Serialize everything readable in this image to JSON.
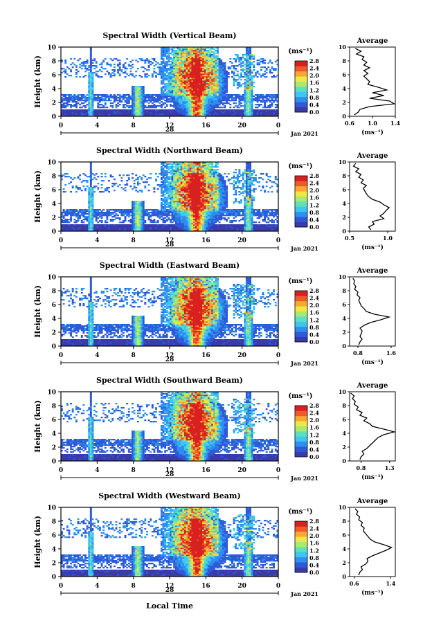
{
  "chart_data": {
    "type": "heatmap",
    "date_label": "Jan 2021",
    "day_label": "28",
    "x_ticks": [
      "0",
      "4",
      "8",
      "12",
      "16",
      "20",
      "0"
    ],
    "xlim_hours": [
      0,
      24
    ],
    "x_axis_label": "Local Time",
    "ylabel": "Height (km)",
    "y_ticks": [
      "0",
      "2",
      "4",
      "6",
      "8",
      "10"
    ],
    "ylim_km": [
      0,
      10
    ],
    "colorbar": {
      "unit": "(ms⁻¹)",
      "range": [
        0,
        2.8
      ],
      "ticks": [
        "0.0",
        "0.4",
        "0.8",
        "1.2",
        "1.6",
        "2.0",
        "2.4",
        "2.8"
      ],
      "colors": [
        "#3a3aa8",
        "#2e5ad8",
        "#2f8ef0",
        "#3cc6f0",
        "#5ee0c0",
        "#a8ea70",
        "#f0e840",
        "#f8a830",
        "#f05a28",
        "#d82020"
      ]
    },
    "average_panel": {
      "title": "Average",
      "xlabel": "(ms⁻¹)"
    },
    "features": {
      "convective_columns_hours": [
        3.3,
        8.5,
        13.5,
        15.0,
        16.5,
        20.7
      ],
      "surface_layer_top_km": 1.0,
      "cloud_layer_km": [
        2.3,
        3.2
      ]
    },
    "panels": [
      {
        "title": "Spectral Width (Vertical Beam)",
        "avg_ticks": [
          "0.6",
          "1.0",
          "1.4"
        ],
        "avg_xlim": [
          0.6,
          1.4
        ],
        "avg_profile": {
          "height_km": [
            0.2,
            0.6,
            1.0,
            1.4,
            1.8,
            2.2,
            2.6,
            3.0,
            3.4,
            3.8,
            4.2,
            4.6,
            5.0,
            5.4,
            5.8,
            6.2,
            6.6,
            7.0,
            7.4,
            7.8,
            8.2,
            8.6,
            9.0,
            9.4,
            9.8
          ],
          "value": [
            0.68,
            0.75,
            0.78,
            0.95,
            1.38,
            1.3,
            0.95,
            1.2,
            1.0,
            1.25,
            1.1,
            0.92,
            0.95,
            0.9,
            0.85,
            0.92,
            0.85,
            0.95,
            0.85,
            0.9,
            0.82,
            0.85,
            0.72,
            0.8,
            0.7
          ]
        }
      },
      {
        "title": "Spectral Width (Northward Beam)",
        "avg_ticks": [
          "0.5",
          "1.0"
        ],
        "avg_xlim": [
          0.5,
          1.1
        ],
        "avg_profile": {
          "height_km": [
            0.2,
            0.6,
            1.0,
            1.4,
            1.8,
            2.2,
            2.6,
            3.0,
            3.4,
            3.8,
            4.2,
            4.6,
            5.0,
            5.4,
            5.8,
            6.2,
            6.6,
            7.0,
            7.4,
            7.8,
            8.2,
            8.6,
            9.0,
            9.4,
            9.8
          ],
          "value": [
            0.78,
            0.75,
            0.82,
            0.8,
            0.95,
            0.9,
            0.95,
            0.98,
            1.02,
            0.95,
            0.9,
            0.8,
            0.75,
            0.72,
            0.7,
            0.68,
            0.72,
            0.65,
            0.68,
            0.62,
            0.65,
            0.58,
            0.62,
            0.55,
            0.58
          ]
        }
      },
      {
        "title": "Spectral Width (Eastward Beam)",
        "avg_ticks": [
          "0.8",
          "1.6"
        ],
        "avg_xlim": [
          0.6,
          1.7
        ],
        "avg_profile": {
          "height_km": [
            0.2,
            0.6,
            1.0,
            1.4,
            1.8,
            2.2,
            2.6,
            3.0,
            3.4,
            3.8,
            4.2,
            4.6,
            5.0,
            5.4,
            5.8,
            6.2,
            6.6,
            7.0,
            7.4,
            7.8,
            8.2,
            8.6,
            9.0,
            9.4,
            9.8
          ],
          "value": [
            0.82,
            0.85,
            0.9,
            0.85,
            0.88,
            0.9,
            0.85,
            0.95,
            1.1,
            1.35,
            1.55,
            1.2,
            1.0,
            0.95,
            0.88,
            0.85,
            0.82,
            0.85,
            0.78,
            0.8,
            0.72,
            0.75,
            0.7,
            0.72,
            0.68
          ]
        }
      },
      {
        "title": "Spectral Width (Southward Beam)",
        "avg_ticks": [
          "0.8",
          "1.3"
        ],
        "avg_xlim": [
          0.6,
          1.4
        ],
        "avg_profile": {
          "height_km": [
            0.2,
            0.6,
            1.0,
            1.4,
            1.8,
            2.2,
            2.6,
            3.0,
            3.4,
            3.8,
            4.2,
            4.6,
            5.0,
            5.4,
            5.8,
            6.2,
            6.6,
            7.0,
            7.4,
            7.8,
            8.2,
            8.6,
            9.0,
            9.4,
            9.8
          ],
          "value": [
            0.78,
            0.8,
            0.85,
            0.82,
            0.9,
            0.95,
            1.0,
            1.05,
            1.1,
            1.2,
            1.38,
            1.2,
            1.0,
            0.95,
            0.85,
            0.9,
            0.78,
            0.82,
            0.72,
            0.75,
            0.68,
            0.7,
            0.65,
            0.68,
            0.62
          ]
        }
      },
      {
        "title": "Spectral Width (Westward Beam)",
        "avg_ticks": [
          "0.6",
          "1.4"
        ],
        "avg_xlim": [
          0.5,
          1.5
        ],
        "avg_profile": {
          "height_km": [
            0.2,
            0.6,
            1.0,
            1.4,
            1.8,
            2.2,
            2.6,
            3.0,
            3.4,
            3.8,
            4.2,
            4.6,
            5.0,
            5.4,
            5.8,
            6.2,
            6.6,
            7.0,
            7.4,
            7.8,
            8.2,
            8.6,
            9.0,
            9.4,
            9.8
          ],
          "value": [
            0.7,
            0.72,
            0.78,
            0.75,
            0.85,
            0.9,
            0.88,
            1.0,
            1.15,
            1.3,
            1.42,
            1.25,
            1.05,
            0.95,
            0.9,
            0.85,
            0.8,
            0.82,
            0.75,
            0.78,
            0.7,
            0.72,
            0.65,
            0.68,
            0.62
          ]
        }
      }
    ]
  }
}
